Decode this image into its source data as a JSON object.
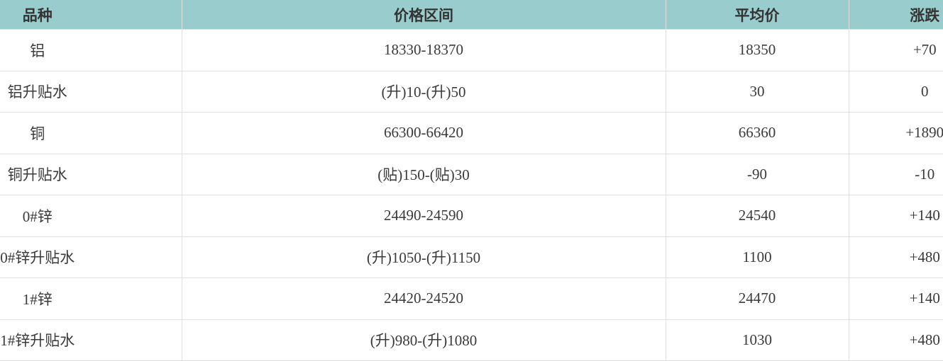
{
  "table": {
    "header_bg": "#99cccc",
    "text_color": "#3a3a3a",
    "grid_color": "#e0e0e0",
    "columns": [
      {
        "key": "variety",
        "label": "品种"
      },
      {
        "key": "range",
        "label": "价格区间"
      },
      {
        "key": "avg",
        "label": "平均价"
      },
      {
        "key": "change",
        "label": "涨跌"
      }
    ],
    "rows": [
      {
        "variety": "铝",
        "range": "18330-18370",
        "avg": "18350",
        "change": "+70"
      },
      {
        "variety": "铝升贴水",
        "range": "(升)10-(升)50",
        "avg": "30",
        "change": "0"
      },
      {
        "variety": "铜",
        "range": "66300-66420",
        "avg": "66360",
        "change": "+1890"
      },
      {
        "variety": "铜升贴水",
        "range": "(贴)150-(贴)30",
        "avg": "-90",
        "change": "-10"
      },
      {
        "variety": "0#锌",
        "range": "24490-24590",
        "avg": "24540",
        "change": "+140"
      },
      {
        "variety": "0#锌升贴水",
        "range": "(升)1050-(升)1150",
        "avg": "1100",
        "change": "+480"
      },
      {
        "variety": "1#锌",
        "range": "24420-24520",
        "avg": "24470",
        "change": "+140"
      },
      {
        "variety": "1#锌升贴水",
        "range": "(升)980-(升)1080",
        "avg": "1030",
        "change": "+480"
      }
    ]
  }
}
